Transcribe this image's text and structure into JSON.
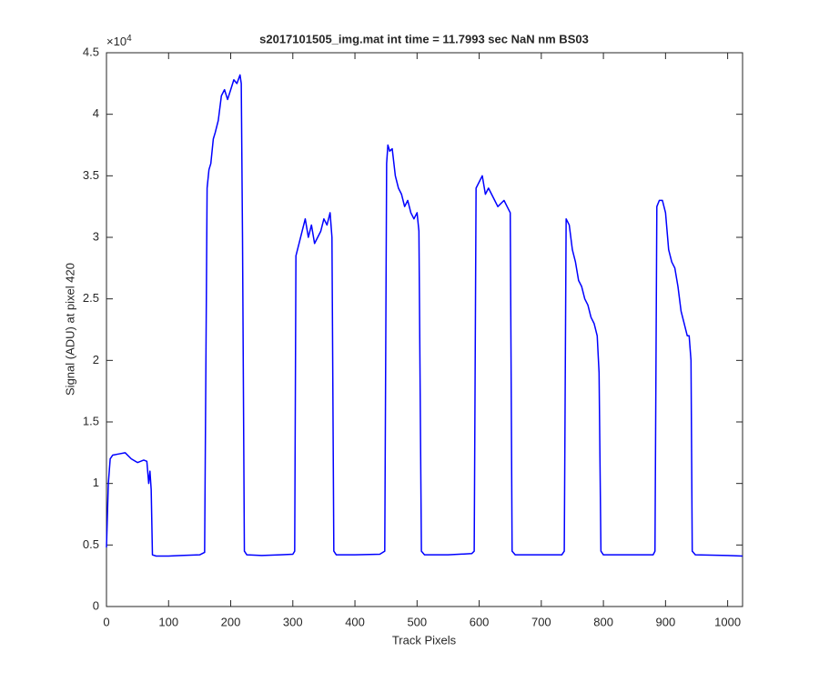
{
  "chart_data": {
    "type": "line",
    "title": "s2017101505_img.mat int time = 11.7993 sec  NaN nm BS03",
    "x_label": "Track Pixels",
    "y_label": "Signal (ADU) at pixel 420",
    "y_multiplier": {
      "base": "×10",
      "exponent": "4"
    },
    "xlim": [
      0,
      1024
    ],
    "ylim": [
      0,
      4.5
    ],
    "xticks": [
      0,
      100,
      200,
      300,
      400,
      500,
      600,
      700,
      800,
      900,
      1000
    ],
    "yticks": [
      0,
      0.5,
      1,
      1.5,
      2,
      2.5,
      3,
      3.5,
      4,
      4.5
    ],
    "grid": false,
    "series": [
      {
        "color": "#0000ff",
        "x": [
          0,
          3,
          6,
          10,
          20,
          30,
          40,
          50,
          60,
          65,
          68,
          70,
          72,
          74,
          80,
          100,
          120,
          150,
          158,
          162,
          165,
          168,
          172,
          175,
          180,
          185,
          190,
          195,
          200,
          205,
          210,
          215,
          217,
          219,
          222,
          226,
          250,
          280,
          300,
          303,
          305,
          310,
          315,
          320,
          325,
          330,
          335,
          340,
          345,
          350,
          355,
          360,
          363,
          366,
          370,
          400,
          440,
          448,
          451,
          453,
          456,
          460,
          465,
          470,
          475,
          480,
          485,
          490,
          495,
          500,
          503,
          507,
          512,
          550,
          588,
          592,
          595,
          600,
          605,
          610,
          615,
          620,
          625,
          630,
          640,
          645,
          650,
          653,
          658,
          700,
          733,
          737,
          740,
          745,
          750,
          755,
          760,
          765,
          770,
          775,
          780,
          785,
          790,
          793,
          796,
          800,
          850,
          880,
          883,
          886,
          890,
          895,
          900,
          905,
          910,
          915,
          920,
          925,
          930,
          935,
          938,
          941,
          943,
          948,
          1000,
          1024
        ],
        "values": [
          0.48,
          1.0,
          1.2,
          1.23,
          1.24,
          1.25,
          1.2,
          1.17,
          1.19,
          1.18,
          1.0,
          1.1,
          0.95,
          0.42,
          0.41,
          0.41,
          0.415,
          0.42,
          0.44,
          3.4,
          3.55,
          3.6,
          3.8,
          3.85,
          3.95,
          4.15,
          4.2,
          4.12,
          4.2,
          4.28,
          4.25,
          4.32,
          4.25,
          3.0,
          0.45,
          0.42,
          0.415,
          0.42,
          0.425,
          0.45,
          2.85,
          2.95,
          3.05,
          3.15,
          3.0,
          3.1,
          2.95,
          3.0,
          3.05,
          3.15,
          3.1,
          3.2,
          3.0,
          0.45,
          0.42,
          0.42,
          0.425,
          0.45,
          3.6,
          3.75,
          3.7,
          3.72,
          3.5,
          3.4,
          3.35,
          3.25,
          3.3,
          3.2,
          3.15,
          3.2,
          3.05,
          0.45,
          0.42,
          0.42,
          0.43,
          0.45,
          3.4,
          3.45,
          3.5,
          3.35,
          3.4,
          3.35,
          3.3,
          3.25,
          3.3,
          3.25,
          3.2,
          0.45,
          0.42,
          0.42,
          0.42,
          0.45,
          3.15,
          3.1,
          2.9,
          2.8,
          2.65,
          2.6,
          2.5,
          2.45,
          2.35,
          2.3,
          2.2,
          1.9,
          0.45,
          0.42,
          0.42,
          0.42,
          0.45,
          3.25,
          3.3,
          3.3,
          3.2,
          2.9,
          2.8,
          2.75,
          2.6,
          2.4,
          2.3,
          2.2,
          2.2,
          2.0,
          0.45,
          0.42,
          0.415,
          0.41
        ]
      }
    ]
  }
}
